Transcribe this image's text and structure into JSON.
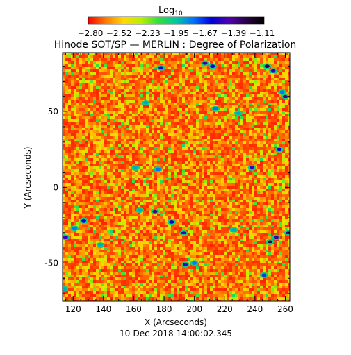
{
  "colorbar": {
    "label_main": "Log",
    "label_sub": "10",
    "tick_labels": [
      "−2.80",
      "−2.52",
      "−2.23",
      "−1.95",
      "−1.67",
      "−1.39",
      "−1.11"
    ],
    "range": [
      -2.8,
      -1.11
    ],
    "colors": [
      "#ff0000",
      "#ff7a00",
      "#ffd800",
      "#b8f000",
      "#30e040",
      "#00c8a0",
      "#0070ff",
      "#0000d8",
      "#5000b0",
      "#2a0040",
      "#000000"
    ]
  },
  "chart_data": {
    "type": "heatmap",
    "title": "Hinode SOT/SP — MERLIN : Degree of Polarization",
    "xlabel": "X (Arcseconds)",
    "ylabel": "Y (Arcseconds)",
    "subtitle": "10-Dec-2018 14:00:02.345",
    "xlim": [
      113,
      263
    ],
    "ylim": [
      -75,
      89
    ],
    "x_ticks": [
      120,
      140,
      160,
      180,
      200,
      220,
      240,
      260
    ],
    "y_ticks": [
      -50,
      0,
      50
    ],
    "value_range": [
      -2.8,
      -1.11
    ],
    "field_typical_range": [
      -2.75,
      -2.25
    ],
    "strong_polarization_patches": [
      {
        "x": 207,
        "y": 82,
        "value": -1.4
      },
      {
        "x": 212,
        "y": 80,
        "value": -1.6
      },
      {
        "x": 178,
        "y": 79,
        "value": -1.6
      },
      {
        "x": 248,
        "y": 80,
        "value": -1.3
      },
      {
        "x": 252,
        "y": 77,
        "value": -1.5
      },
      {
        "x": 260,
        "y": 60,
        "value": -1.4
      },
      {
        "x": 258,
        "y": 63,
        "value": -1.8
      },
      {
        "x": 168,
        "y": 56,
        "value": -1.9
      },
      {
        "x": 214,
        "y": 52,
        "value": -1.8
      },
      {
        "x": 229,
        "y": 49,
        "value": -1.9
      },
      {
        "x": 256,
        "y": 25,
        "value": -1.6
      },
      {
        "x": 238,
        "y": 13,
        "value": -1.5
      },
      {
        "x": 176,
        "y": 12,
        "value": -1.8
      },
      {
        "x": 161,
        "y": 13,
        "value": -1.9
      },
      {
        "x": 164,
        "y": -15,
        "value": -1.9
      },
      {
        "x": 174,
        "y": -16,
        "value": -1.4
      },
      {
        "x": 127,
        "y": -22,
        "value": -1.6
      },
      {
        "x": 185,
        "y": -23,
        "value": -1.6
      },
      {
        "x": 121,
        "y": -27,
        "value": -1.8
      },
      {
        "x": 193,
        "y": -30,
        "value": -1.5
      },
      {
        "x": 226,
        "y": -28,
        "value": -1.9
      },
      {
        "x": 254,
        "y": -33,
        "value": -1.4
      },
      {
        "x": 250,
        "y": -36,
        "value": -1.3
      },
      {
        "x": 115,
        "y": -33,
        "value": -1.5
      },
      {
        "x": 138,
        "y": -38,
        "value": -1.9
      },
      {
        "x": 262,
        "y": -30,
        "value": -1.4
      },
      {
        "x": 200,
        "y": -50,
        "value": -1.8
      },
      {
        "x": 194,
        "y": -51,
        "value": -1.5
      },
      {
        "x": 246,
        "y": -58,
        "value": -1.7
      },
      {
        "x": 114,
        "y": -67,
        "value": -1.9
      }
    ]
  }
}
